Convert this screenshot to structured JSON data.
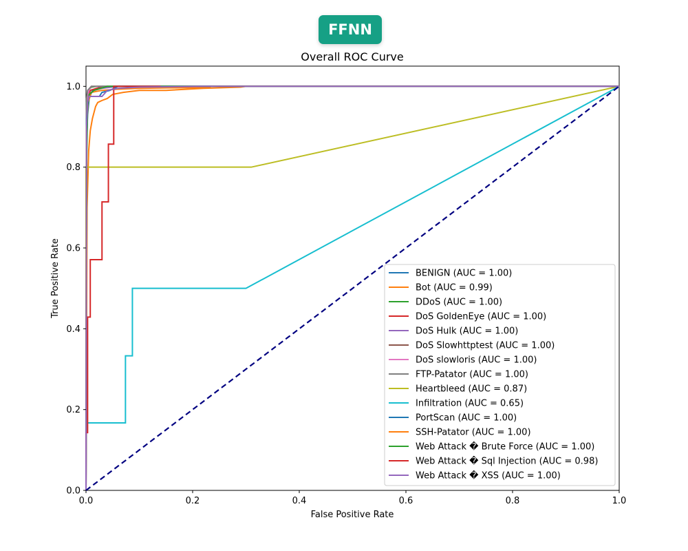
{
  "badge": {
    "label": "FFNN",
    "color": "#16a085"
  },
  "chart_data": {
    "type": "line",
    "title": "Overall ROC Curve",
    "xlabel": "False Positive Rate",
    "ylabel": "True Positive Rate",
    "xlim": [
      0.0,
      1.0
    ],
    "ylim": [
      0.0,
      1.05
    ],
    "xticks": [
      "0.0",
      "0.2",
      "0.4",
      "0.6",
      "0.8",
      "1.0"
    ],
    "yticks": [
      "0.0",
      "0.2",
      "0.4",
      "0.6",
      "0.8",
      "1.0"
    ],
    "grid": false,
    "legend_position": "lower-right",
    "reference_line": {
      "x": [
        0,
        1
      ],
      "y": [
        0,
        1
      ],
      "color": "#000080",
      "style": "dashed"
    },
    "series": [
      {
        "name": "BENIGN (AUC = 1.00)",
        "color": "#1f77b4",
        "x": [
          0,
          0.001,
          0.003,
          0.006,
          0.012,
          0.03,
          1.0
        ],
        "y": [
          0,
          0.85,
          0.93,
          0.97,
          0.99,
          1.0,
          1.0
        ]
      },
      {
        "name": "Bot (AUC = 0.99)",
        "color": "#ff7f0e",
        "x": [
          0,
          0.002,
          0.005,
          0.008,
          0.012,
          0.018,
          0.022,
          0.03,
          0.04,
          0.05,
          0.07,
          0.1,
          0.15,
          0.22,
          0.29,
          0.3,
          1.0
        ],
        "y": [
          0,
          0.7,
          0.84,
          0.89,
          0.92,
          0.95,
          0.96,
          0.965,
          0.97,
          0.98,
          0.985,
          0.99,
          0.99,
          0.995,
          0.998,
          1.0,
          1.0
        ]
      },
      {
        "name": "DDoS (AUC = 1.00)",
        "color": "#2ca02c",
        "x": [
          0,
          0.001,
          0.004,
          0.01,
          0.02,
          1.0
        ],
        "y": [
          0,
          0.96,
          0.99,
          0.998,
          1.0,
          1.0
        ]
      },
      {
        "name": "DoS GoldenEye (AUC = 1.00)",
        "color": "#d62728",
        "x": [
          0,
          0.001,
          0.004,
          0.008,
          0.02,
          0.05,
          1.0
        ],
        "y": [
          0,
          0.9,
          0.97,
          0.99,
          0.995,
          1.0,
          1.0
        ]
      },
      {
        "name": "DoS Hulk (AUC = 1.00)",
        "color": "#9467bd",
        "x": [
          0,
          0.001,
          0.003,
          0.007,
          0.015,
          0.03,
          0.06,
          1.0
        ],
        "y": [
          0,
          0.9,
          0.96,
          0.98,
          0.99,
          0.995,
          1.0,
          1.0
        ]
      },
      {
        "name": "DoS Slowhttptest (AUC = 1.00)",
        "color": "#8c564b",
        "x": [
          0,
          0.001,
          0.004,
          0.01,
          1.0
        ],
        "y": [
          0,
          0.95,
          0.99,
          1.0,
          1.0
        ]
      },
      {
        "name": "DoS slowloris (AUC = 1.00)",
        "color": "#e377c2",
        "x": [
          0,
          0.001,
          0.005,
          0.01,
          1.0
        ],
        "y": [
          0,
          0.94,
          0.99,
          1.0,
          1.0
        ]
      },
      {
        "name": "FTP-Patator (AUC = 1.00)",
        "color": "#7f7f7f",
        "x": [
          0,
          0.001,
          0.003,
          0.01,
          1.0
        ],
        "y": [
          0,
          0.97,
          0.99,
          1.0,
          1.0
        ]
      },
      {
        "name": "Heartbleed (AUC = 0.87)",
        "color": "#bcbd22",
        "x": [
          0,
          0.0,
          0.31,
          1.0
        ],
        "y": [
          0,
          0.8,
          0.8,
          1.0
        ]
      },
      {
        "name": "Infiltration (AUC = 0.65)",
        "color": "#17becf",
        "x": [
          0,
          0.0,
          0.074,
          0.074,
          0.087,
          0.087,
          0.3,
          1.0
        ],
        "y": [
          0,
          0.167,
          0.167,
          0.333,
          0.333,
          0.5,
          0.5,
          1.0
        ]
      },
      {
        "name": "PortScan (AUC = 1.00)",
        "color": "#1f77b4",
        "x": [
          0,
          0.001,
          0.004,
          0.006,
          0.025,
          0.03,
          0.045,
          0.06,
          1.0
        ],
        "y": [
          0,
          0.92,
          0.96,
          0.975,
          0.975,
          0.985,
          0.99,
          1.0,
          1.0
        ]
      },
      {
        "name": "SSH-Patator (AUC = 1.00)",
        "color": "#ff7f0e",
        "x": [
          0,
          0.001,
          0.004,
          0.01,
          0.03,
          0.06,
          0.1,
          0.15,
          0.23,
          0.235,
          1.0
        ],
        "y": [
          0,
          0.9,
          0.96,
          0.985,
          0.99,
          0.993,
          0.995,
          0.996,
          0.997,
          1.0,
          1.0
        ]
      },
      {
        "name": "Web Attack � Brute Force (AUC = 1.00)",
        "color": "#2ca02c",
        "x": [
          0,
          0.001,
          0.003,
          0.006,
          0.015,
          0.04,
          1.0
        ],
        "y": [
          0,
          0.8,
          0.95,
          0.98,
          0.99,
          1.0,
          1.0
        ]
      },
      {
        "name": "Web Attack � Sql Injection (AUC = 0.98)",
        "color": "#d62728",
        "x": [
          0,
          0.0,
          0.003,
          0.003,
          0.008,
          0.008,
          0.03,
          0.03,
          0.042,
          0.042,
          0.052,
          0.052,
          0.14
        ],
        "y": [
          0,
          0.143,
          0.143,
          0.429,
          0.429,
          0.571,
          0.571,
          0.714,
          0.714,
          0.857,
          0.857,
          1.0,
          1.0
        ]
      },
      {
        "name": "Web Attack � XSS (AUC = 1.00)",
        "color": "#9467bd",
        "x": [
          0,
          0.001,
          0.003,
          0.006,
          0.03,
          0.04,
          0.06,
          0.1,
          0.22,
          1.0
        ],
        "y": [
          0,
          0.9,
          0.96,
          0.975,
          0.975,
          0.99,
          0.995,
          0.998,
          1.0,
          1.0
        ]
      }
    ]
  }
}
